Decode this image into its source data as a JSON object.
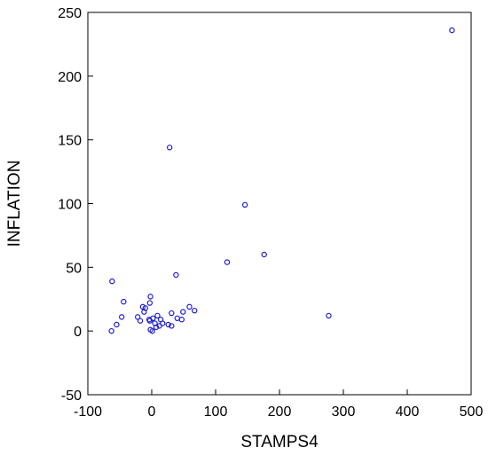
{
  "chart_data": {
    "type": "scatter",
    "title": "",
    "xlabel": "STAMPS4",
    "ylabel": "INFLATION",
    "xlim": [
      -100,
      500
    ],
    "ylim": [
      -50,
      250
    ],
    "xticks": [
      -100,
      0,
      100,
      200,
      300,
      400,
      500
    ],
    "yticks": [
      -50,
      0,
      50,
      100,
      150,
      200,
      250
    ],
    "grid": false,
    "marker_color": "#1f1fd0",
    "points": [
      {
        "x": 470,
        "y": 236
      },
      {
        "x": 28,
        "y": 144
      },
      {
        "x": 146,
        "y": 99
      },
      {
        "x": 176,
        "y": 60
      },
      {
        "x": 118,
        "y": 54
      },
      {
        "x": 38,
        "y": 44
      },
      {
        "x": 277,
        "y": 12
      },
      {
        "x": -62,
        "y": 39
      },
      {
        "x": -44,
        "y": 23
      },
      {
        "x": -2,
        "y": 27
      },
      {
        "x": -3,
        "y": 22
      },
      {
        "x": -14,
        "y": 19
      },
      {
        "x": -10,
        "y": 18
      },
      {
        "x": -12,
        "y": 15
      },
      {
        "x": -22,
        "y": 11
      },
      {
        "x": -47,
        "y": 11
      },
      {
        "x": -55,
        "y": 5
      },
      {
        "x": -63,
        "y": 0
      },
      {
        "x": -18,
        "y": 8
      },
      {
        "x": -4,
        "y": 9
      },
      {
        "x": -3,
        "y": 8
      },
      {
        "x": 2,
        "y": 10
      },
      {
        "x": 5,
        "y": 6
      },
      {
        "x": 9,
        "y": 12
      },
      {
        "x": 14,
        "y": 9
      },
      {
        "x": 12,
        "y": 4
      },
      {
        "x": 7,
        "y": 3
      },
      {
        "x": -2,
        "y": 1
      },
      {
        "x": 1,
        "y": 0
      },
      {
        "x": 17,
        "y": 6
      },
      {
        "x": 26,
        "y": 5
      },
      {
        "x": 31,
        "y": 4
      },
      {
        "x": 31,
        "y": 14
      },
      {
        "x": 40,
        "y": 10
      },
      {
        "x": 47,
        "y": 9
      },
      {
        "x": 49,
        "y": 15
      },
      {
        "x": 59,
        "y": 19
      },
      {
        "x": 67,
        "y": 16
      }
    ]
  }
}
